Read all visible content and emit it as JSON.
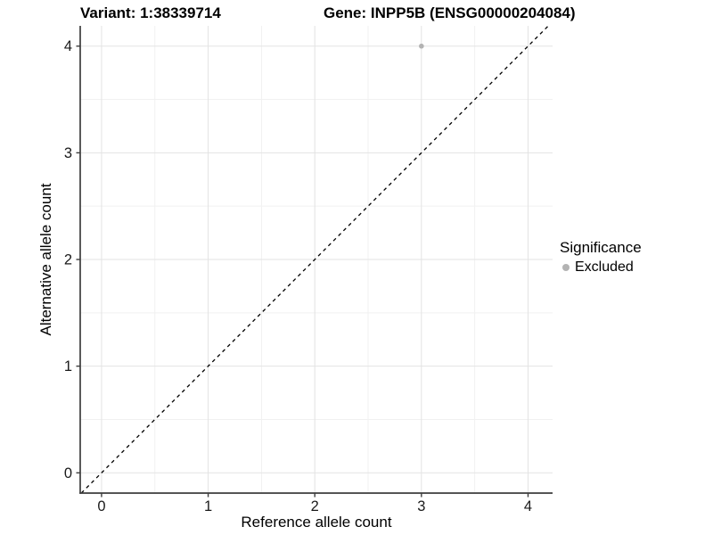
{
  "title": {
    "variant": "Variant: 1:38339714",
    "gene": "Gene: INPP5B (ENSG00000204084)"
  },
  "axes": {
    "x_label": "Reference allele count",
    "y_label": "Alternative allele count"
  },
  "legend": {
    "title": "Significance",
    "items": [
      {
        "label": "Excluded",
        "color": "#b3b3b3"
      }
    ]
  },
  "chart_data": {
    "type": "scatter",
    "title": "Variant: 1:38339714   Gene: INPP5B (ENSG00000204084)",
    "xlabel": "Reference allele count",
    "ylabel": "Alternative allele count",
    "xlim": [
      -0.2,
      4.23
    ],
    "ylim": [
      -0.19,
      4.19
    ],
    "x_ticks": [
      0,
      1,
      2,
      3,
      4
    ],
    "y_ticks": [
      0,
      1,
      2,
      3,
      4
    ],
    "x_minor_ticks": [
      0.5,
      1.5,
      2.5,
      3.5
    ],
    "y_minor_ticks": [
      0.5,
      1.5,
      2.5,
      3.5
    ],
    "grid": true,
    "legend_position": "right",
    "series": [
      {
        "name": "Excluded",
        "color": "#b3b3b3",
        "points": [
          {
            "x": 3,
            "y": 4
          }
        ]
      }
    ],
    "reference_line": {
      "type": "identity y=x",
      "style": "dashed",
      "color": "#000000"
    },
    "colors": {
      "grid_major": "#e3e3e3",
      "grid_minor": "#f1f1f1",
      "axis_line": "#3d3d3d",
      "tick_label": "#1a1a1a",
      "background": "#ffffff"
    }
  }
}
